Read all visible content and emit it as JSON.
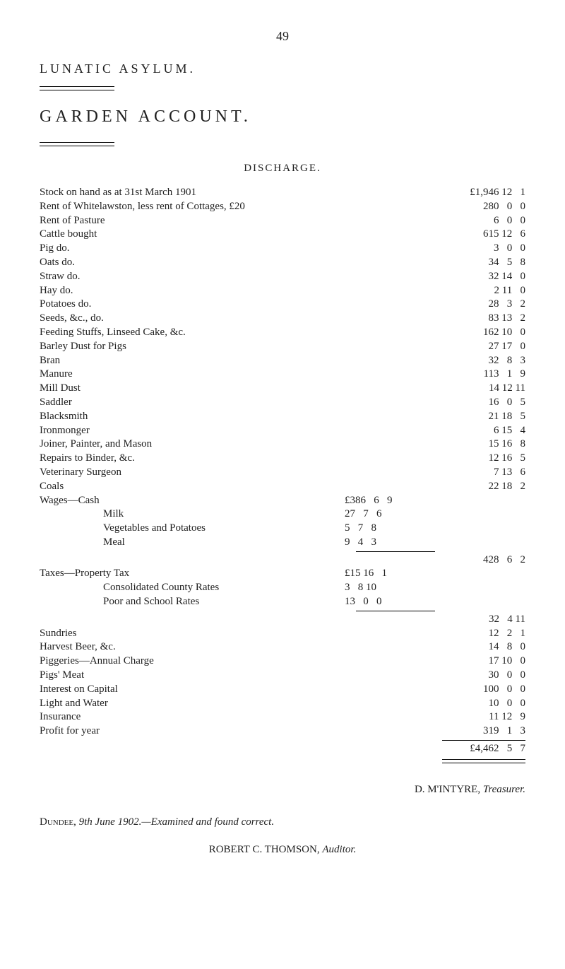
{
  "page_number": "49",
  "heading": "LUNATIC  ASYLUM.",
  "title": "GARDEN  ACCOUNT.",
  "section": "DISCHARGE.",
  "lines": [
    {
      "label": "Stock on hand as at 31st March 1901",
      "sub": "",
      "amt": "£1,946 12   1"
    },
    {
      "label": "Rent of Whitelawston, less rent of Cottages, £20",
      "sub": "",
      "amt": "280   0   0"
    },
    {
      "label": "Rent of Pasture",
      "sub": "",
      "amt": "6   0   0"
    },
    {
      "label": "Cattle bought",
      "sub": "",
      "amt": "615 12   6"
    },
    {
      "label": "Pig        do.",
      "sub": "",
      "amt": "3   0   0"
    },
    {
      "label": "Oats      do.",
      "sub": "",
      "amt": "34   5   8"
    },
    {
      "label": "Straw    do.",
      "sub": "",
      "amt": "32 14   0"
    },
    {
      "label": "Hay       do.",
      "sub": "",
      "amt": "2 11   0"
    },
    {
      "label": "Potatoes do.",
      "sub": "",
      "amt": "28   3   2"
    },
    {
      "label": "Seeds, &c., do.",
      "sub": "",
      "amt": "83 13   2"
    },
    {
      "label": "Feeding Stuffs, Linseed Cake, &c.",
      "sub": "",
      "amt": "162 10   0"
    },
    {
      "label": "Barley Dust for Pigs",
      "sub": "",
      "amt": "27 17   0"
    },
    {
      "label": "Bran",
      "sub": "",
      "amt": "32   8   3"
    },
    {
      "label": "Manure",
      "sub": "",
      "amt": "113   1   9"
    },
    {
      "label": "Mill Dust",
      "sub": "",
      "amt": "14 12 11"
    },
    {
      "label": "Saddler",
      "sub": "",
      "amt": "16   0   5"
    },
    {
      "label": "Blacksmith",
      "sub": "",
      "amt": "21 18   5"
    },
    {
      "label": "Ironmonger",
      "sub": "",
      "amt": "6 15   4"
    },
    {
      "label": "Joiner, Painter, and Mason",
      "sub": "",
      "amt": "15 16   8"
    },
    {
      "label": "Repairs to Binder, &c.",
      "sub": "",
      "amt": "12 16   5"
    },
    {
      "label": "Veterinary Surgeon",
      "sub": "",
      "amt": "7 13   6"
    },
    {
      "label": "Coals",
      "sub": "",
      "amt": "22 18   2"
    }
  ],
  "wages_label": "Wages—Cash",
  "wages": [
    {
      "label": "Cash",
      "sub": "£386   6   9",
      "amt": ""
    },
    {
      "label": "Milk",
      "sub": "27   7   6",
      "amt": "",
      "indent": "indent-2"
    },
    {
      "label": "Vegetables and Potatoes",
      "sub": "5   7   8",
      "amt": "",
      "indent": "indent-2"
    },
    {
      "label": "Meal",
      "sub": "9   4   3",
      "amt": "",
      "indent": "indent-2"
    }
  ],
  "wages_total": "428   6   2",
  "taxes_label": "Taxes—Property Tax",
  "taxes": [
    {
      "label": "Property Tax",
      "sub": "£15 16   1",
      "amt": ""
    },
    {
      "label": "Consolidated County Rates",
      "sub": "3   8 10",
      "amt": "",
      "indent": "indent-2"
    },
    {
      "label": "Poor and School Rates",
      "sub": "13   0   0",
      "amt": "",
      "indent": "indent-2"
    }
  ],
  "taxes_total": "32   4 11",
  "tail": [
    {
      "label": "Sundries",
      "sub": "",
      "amt": "12   2   1"
    },
    {
      "label": "Harvest Beer, &c.",
      "sub": "",
      "amt": "14   8   0"
    },
    {
      "label": "Piggeries—Annual Charge",
      "sub": "",
      "amt": "17 10   0"
    },
    {
      "label": "Pigs' Meat",
      "sub": "",
      "amt": "30   0   0"
    },
    {
      "label": "Interest on Capital",
      "sub": "",
      "amt": "100   0   0"
    },
    {
      "label": "Light and Water",
      "sub": "",
      "amt": "10   0   0"
    },
    {
      "label": "Insurance",
      "sub": "",
      "amt": "11 12   9"
    },
    {
      "label": "Profit for year",
      "sub": "",
      "amt": "319   1   3"
    }
  ],
  "grand_total": "£4,462   5   7",
  "signature_name": "D. M'INTYRE,",
  "signature_role": "Treasurer.",
  "examined_prefix": "Dundee,",
  "examined_text": " 9th June 1902.—Examined and found correct.",
  "auditor": "ROBERT C. THOMSON, ",
  "auditor_role": "Auditor."
}
